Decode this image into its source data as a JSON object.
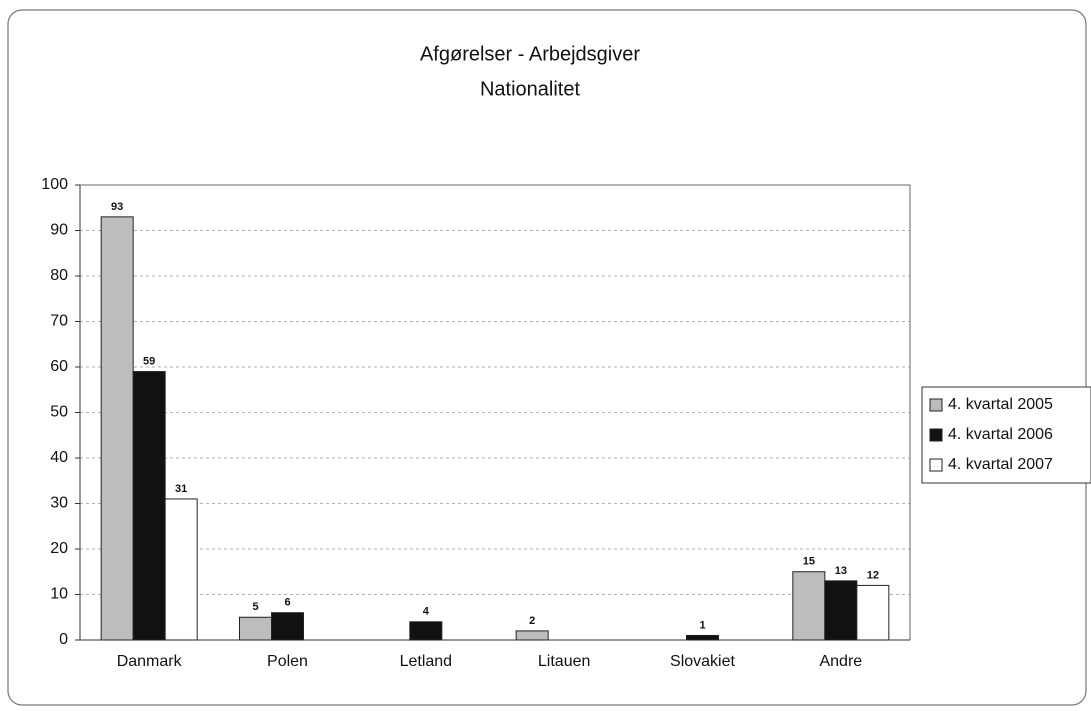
{
  "chart_data": {
    "type": "bar",
    "title": "Afgørelser - Arbejdsgiver",
    "subtitle": "Nationalitet",
    "categories": [
      "Danmark",
      "Polen",
      "Letland",
      "Litauen",
      "Slovakiet",
      "Andre"
    ],
    "series": [
      {
        "name": "4. kvartal 2005",
        "color": "#bdbdbd",
        "values": [
          93,
          5,
          null,
          2,
          null,
          15
        ]
      },
      {
        "name": "4. kvartal 2006",
        "color": "#111111",
        "values": [
          59,
          6,
          4,
          null,
          1,
          13
        ]
      },
      {
        "name": "4. kvartal 2007",
        "color": "#ffffff",
        "values": [
          31,
          null,
          null,
          null,
          null,
          12
        ]
      }
    ],
    "ylim": [
      0,
      100
    ],
    "yticks": [
      0,
      10,
      20,
      30,
      40,
      50,
      60,
      70,
      80,
      90,
      100
    ],
    "grid": true,
    "legend": "right"
  }
}
